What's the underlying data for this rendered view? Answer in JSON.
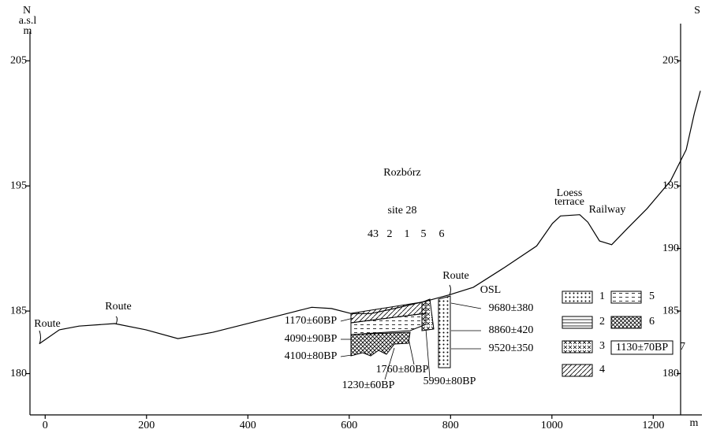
{
  "chart_data": {
    "type": "line",
    "left_axis_labels": [
      "N",
      "a.s.l",
      "m"
    ],
    "right_axis_label": "S",
    "x_axis_label": "m",
    "x": [
      -11,
      28,
      67,
      137,
      199,
      262,
      331,
      409,
      487,
      526,
      565,
      604,
      643,
      689,
      752,
      798,
      845,
      907,
      970,
      1001,
      1017,
      1055,
      1071,
      1094,
      1118,
      1149,
      1188,
      1234,
      1265,
      1281,
      1293
    ],
    "series": [
      {
        "color": "#000000",
        "values": [
          182.4,
          183.5,
          183.8,
          184.0,
          183.5,
          182.8,
          183.3,
          184.1,
          184.9,
          185.3,
          185.2,
          184.8,
          184.8,
          185.2,
          185.8,
          186.3,
          186.9,
          188.5,
          190.2,
          192.0,
          192.6,
          192.7,
          192.1,
          190.6,
          190.3,
          191.6,
          193.2,
          195.4,
          197.9,
          200.8,
          202.6
        ]
      }
    ],
    "xlim": [
      -30,
      1296
    ],
    "xticks": [
      0,
      200,
      400,
      600,
      800,
      1000,
      1200
    ],
    "ylim": [
      176.7,
      208.6
    ],
    "yticks": [
      180,
      185,
      195,
      205
    ],
    "y2lim": [
      176.7,
      208.6
    ],
    "y2ticks": [
      180,
      185,
      190,
      195,
      205
    ],
    "annotations": [
      "Route",
      "Route",
      "Route",
      "Rozbórz",
      "site 28",
      "43",
      "2",
      "1",
      "5",
      "6",
      "Loess",
      "terrace",
      "Railway",
      "OSL",
      "1170±60BP",
      "4090±90BP",
      "4100±80BP",
      "1760±80BP",
      "1230±60BP",
      "5990±80BP",
      "9680±380",
      "8860±420",
      "9520±350"
    ],
    "legend_labels": [
      "1",
      "2",
      "3",
      "4",
      "5",
      "6",
      "7"
    ],
    "legend_box_label": "1130±70BP"
  }
}
